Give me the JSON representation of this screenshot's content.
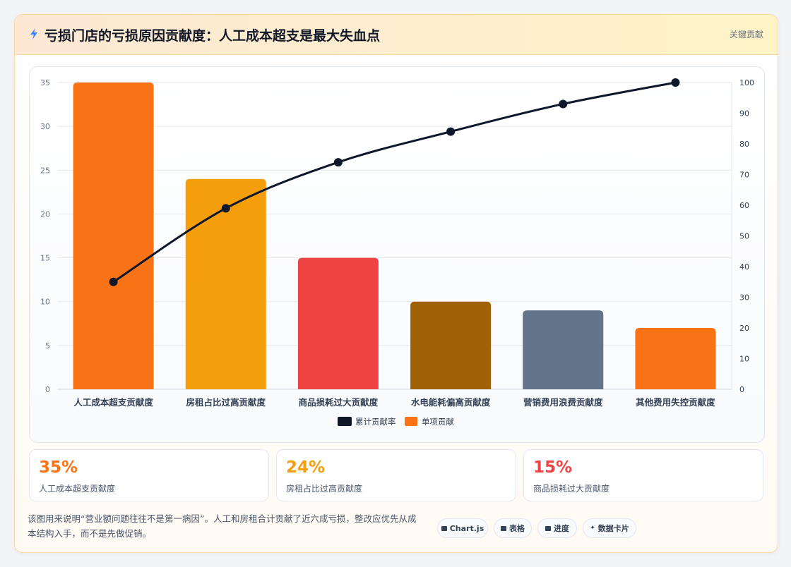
{
  "header": {
    "title": "亏损门店的亏损原因贡献度：人工成本超支是最大失血点",
    "badge": "关键贡献"
  },
  "chart_data": {
    "type": "bar",
    "categories": [
      "人工成本超支贡献度",
      "房租占比过高贡献度",
      "商品损耗过大贡献度",
      "水电能耗偏高贡献度",
      "营销费用浪费贡献度",
      "其他费用失控贡献度"
    ],
    "series": [
      {
        "name": "单项贡献",
        "type": "bar",
        "values": [
          35,
          24,
          15,
          10,
          9,
          7
        ],
        "colors": [
          "#f97316",
          "#f59e0b",
          "#ef4444",
          "#a16207",
          "#64748b",
          "#f97316"
        ]
      },
      {
        "name": "累计贡献率",
        "type": "line",
        "values": [
          35,
          59,
          74,
          84,
          93,
          100
        ],
        "color": "#0f172a",
        "axis": "right"
      }
    ],
    "yticks_left": [
      "0",
      "5",
      "10",
      "15",
      "20",
      "25",
      "30",
      "35"
    ],
    "yticks_right": [
      "0",
      "10",
      "20",
      "30",
      "40",
      "50",
      "60",
      "70",
      "80",
      "90",
      "100"
    ],
    "ylim": [
      0,
      35
    ],
    "ylim_right": [
      0,
      100
    ],
    "grid": true,
    "legend_position": "bottom"
  },
  "stats": [
    {
      "value": "35%",
      "label": "人工成本超支贡献度",
      "color": "#f97316"
    },
    {
      "value": "24%",
      "label": "房租占比过高贡献度",
      "color": "#f59e0b"
    },
    {
      "value": "15%",
      "label": "商品损耗过大贡献度",
      "color": "#ef4444"
    }
  ],
  "footer": {
    "note": "该图用来说明“营业额问题往往不是第一病因”。人工和房租合计贡献了近六成亏损，整改应优先从成本结构入手，而不是先做促销。",
    "chips": [
      {
        "label": "Chart.js",
        "icon": "chart-icon"
      },
      {
        "label": "表格",
        "icon": "table-icon"
      },
      {
        "label": "进度",
        "icon": "progress-icon"
      },
      {
        "label": "数据卡片",
        "icon": "sparkle-icon"
      }
    ]
  }
}
